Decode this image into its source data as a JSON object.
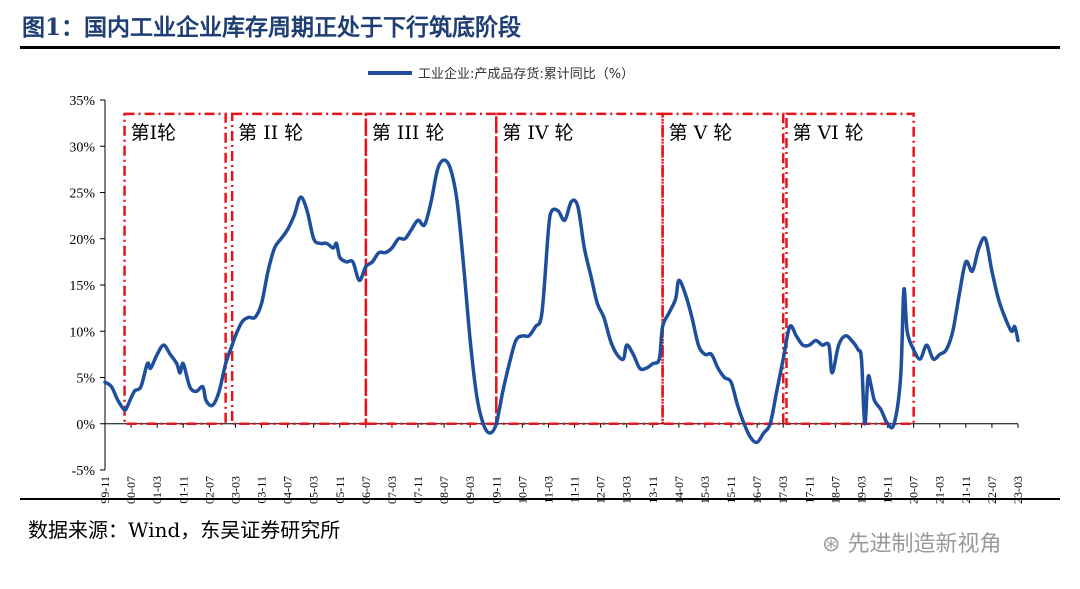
{
  "title": "图1：国内工业企业库存周期正处于下行筑底阶段",
  "source": "数据来源：Wind，东吴证券研究所",
  "watermark": "先进制造新视角",
  "colors": {
    "line": "#1f4e9c",
    "period": "#e8141b",
    "title": "#1f3f74"
  },
  "chart_data": {
    "type": "line",
    "title": "",
    "xlabel": "",
    "ylabel": "",
    "ylim": [
      -5,
      35
    ],
    "yticks": [
      -5,
      0,
      5,
      10,
      15,
      20,
      25,
      30,
      35
    ],
    "ytick_labels": [
      "-5%",
      "0%",
      "5%",
      "10%",
      "15%",
      "20%",
      "25%",
      "30%",
      "35%"
    ],
    "x_start": "1999-11",
    "x_end": "2023-03",
    "xtick_labels": [
      "99-11",
      "00-07",
      "01-03",
      "01-11",
      "02-07",
      "03-03",
      "03-11",
      "04-07",
      "05-03",
      "05-11",
      "06-07",
      "07-03",
      "07-11",
      "08-07",
      "09-03",
      "09-11",
      "10-07",
      "11-03",
      "11-11",
      "12-07",
      "13-03",
      "13-11",
      "14-07",
      "15-03",
      "15-11",
      "16-07",
      "17-03",
      "17-11",
      "18-07",
      "19-03",
      "19-11",
      "20-07",
      "21-03",
      "21-11",
      "22-07",
      "23-03"
    ],
    "legend": {
      "label": "工业企业:产成品存货:累计同比（%）",
      "position": "top-center"
    },
    "series": [
      {
        "name": "工业企业:产成品存货:累计同比（%）",
        "points": [
          [
            "1999-11",
            4.5
          ],
          [
            "2000-01",
            4.0
          ],
          [
            "2000-03",
            2.5
          ],
          [
            "2000-05",
            1.5
          ],
          [
            "2000-06",
            2.0
          ],
          [
            "2000-08",
            3.5
          ],
          [
            "2000-10",
            4.0
          ],
          [
            "2000-12",
            6.5
          ],
          [
            "2001-01",
            6.0
          ],
          [
            "2001-03",
            7.5
          ],
          [
            "2001-05",
            8.5
          ],
          [
            "2001-07",
            7.5
          ],
          [
            "2001-09",
            6.5
          ],
          [
            "2001-10",
            5.5
          ],
          [
            "2001-11",
            6.5
          ],
          [
            "2002-01",
            4.0
          ],
          [
            "2002-03",
            3.5
          ],
          [
            "2002-05",
            4.0
          ],
          [
            "2002-06",
            2.5
          ],
          [
            "2002-08",
            2.0
          ],
          [
            "2002-10",
            3.5
          ],
          [
            "2002-12",
            6.5
          ],
          [
            "2003-02",
            8.5
          ],
          [
            "2003-03",
            9.5
          ],
          [
            "2003-05",
            11.0
          ],
          [
            "2003-07",
            11.5
          ],
          [
            "2003-09",
            11.5
          ],
          [
            "2003-11",
            13.0
          ],
          [
            "2004-01",
            16.5
          ],
          [
            "2004-03",
            19.0
          ],
          [
            "2004-05",
            20.0
          ],
          [
            "2004-07",
            21.0
          ],
          [
            "2004-09",
            22.5
          ],
          [
            "2004-11",
            24.5
          ],
          [
            "2005-01",
            23.0
          ],
          [
            "2005-03",
            20.0
          ],
          [
            "2005-05",
            19.5
          ],
          [
            "2005-07",
            19.5
          ],
          [
            "2005-09",
            19.0
          ],
          [
            "2005-10",
            19.5
          ],
          [
            "2005-11",
            18.0
          ],
          [
            "2006-01",
            17.5
          ],
          [
            "2006-03",
            17.5
          ],
          [
            "2006-05",
            15.5
          ],
          [
            "2006-07",
            17.0
          ],
          [
            "2006-09",
            17.5
          ],
          [
            "2006-11",
            18.5
          ],
          [
            "2007-01",
            18.5
          ],
          [
            "2007-03",
            19.0
          ],
          [
            "2007-05",
            20.0
          ],
          [
            "2007-07",
            20.0
          ],
          [
            "2007-09",
            21.0
          ],
          [
            "2007-11",
            22.0
          ],
          [
            "2008-01",
            21.5
          ],
          [
            "2008-03",
            24.0
          ],
          [
            "2008-05",
            27.5
          ],
          [
            "2008-07",
            28.5
          ],
          [
            "2008-09",
            27.5
          ],
          [
            "2008-11",
            24.0
          ],
          [
            "2009-01",
            17.0
          ],
          [
            "2009-03",
            9.0
          ],
          [
            "2009-05",
            3.0
          ],
          [
            "2009-07",
            0.0
          ],
          [
            "2009-09",
            -1.0
          ],
          [
            "2009-11",
            0.0
          ],
          [
            "2010-01",
            3.5
          ],
          [
            "2010-03",
            6.5
          ],
          [
            "2010-05",
            9.0
          ],
          [
            "2010-07",
            9.5
          ],
          [
            "2010-09",
            9.5
          ],
          [
            "2010-11",
            10.5
          ],
          [
            "2011-01",
            12.0
          ],
          [
            "2011-03",
            21.0
          ],
          [
            "2011-04",
            23.0
          ],
          [
            "2011-06",
            23.0
          ],
          [
            "2011-08",
            22.0
          ],
          [
            "2011-10",
            24.0
          ],
          [
            "2011-12",
            23.5
          ],
          [
            "2012-02",
            19.0
          ],
          [
            "2012-04",
            16.0
          ],
          [
            "2012-06",
            13.0
          ],
          [
            "2012-08",
            11.5
          ],
          [
            "2012-10",
            9.0
          ],
          [
            "2012-12",
            7.5
          ],
          [
            "2013-02",
            7.0
          ],
          [
            "2013-03",
            8.5
          ],
          [
            "2013-05",
            7.5
          ],
          [
            "2013-07",
            6.0
          ],
          [
            "2013-09",
            6.0
          ],
          [
            "2013-11",
            6.5
          ],
          [
            "2014-01",
            7.0
          ],
          [
            "2014-02",
            10.5
          ],
          [
            "2014-04",
            12.0
          ],
          [
            "2014-06",
            13.5
          ],
          [
            "2014-07",
            15.5
          ],
          [
            "2014-09",
            14.0
          ],
          [
            "2014-11",
            11.5
          ],
          [
            "2015-01",
            8.5
          ],
          [
            "2015-03",
            7.5
          ],
          [
            "2015-05",
            7.5
          ],
          [
            "2015-07",
            6.0
          ],
          [
            "2015-09",
            5.0
          ],
          [
            "2015-11",
            4.5
          ],
          [
            "2016-01",
            2.0
          ],
          [
            "2016-03",
            0.0
          ],
          [
            "2016-05",
            -1.5
          ],
          [
            "2016-07",
            -2.0
          ],
          [
            "2016-09",
            -1.0
          ],
          [
            "2016-11",
            0.0
          ],
          [
            "2017-01",
            3.5
          ],
          [
            "2017-03",
            7.0
          ],
          [
            "2017-05",
            10.5
          ],
          [
            "2017-07",
            9.5
          ],
          [
            "2017-09",
            8.5
          ],
          [
            "2017-11",
            8.5
          ],
          [
            "2018-01",
            9.0
          ],
          [
            "2018-03",
            8.5
          ],
          [
            "2018-05",
            8.5
          ],
          [
            "2018-06",
            5.5
          ],
          [
            "2018-08",
            8.5
          ],
          [
            "2018-10",
            9.5
          ],
          [
            "2018-12",
            9.0
          ],
          [
            "2019-02",
            8.0
          ],
          [
            "2019-03",
            7.0
          ],
          [
            "2019-04",
            0.0
          ],
          [
            "2019-05",
            5.0
          ],
          [
            "2019-06",
            4.0
          ],
          [
            "2019-07",
            2.5
          ],
          [
            "2019-09",
            1.5
          ],
          [
            "2019-11",
            0.0
          ],
          [
            "2020-01",
            0.0
          ],
          [
            "2020-03",
            5.0
          ],
          [
            "2020-04",
            14.5
          ],
          [
            "2020-05",
            10.0
          ],
          [
            "2020-07",
            8.0
          ],
          [
            "2020-09",
            7.0
          ],
          [
            "2020-11",
            8.5
          ],
          [
            "2021-01",
            7.0
          ],
          [
            "2021-03",
            7.5
          ],
          [
            "2021-05",
            8.0
          ],
          [
            "2021-07",
            10.0
          ],
          [
            "2021-09",
            14.0
          ],
          [
            "2021-11",
            17.5
          ],
          [
            "2022-01",
            16.5
          ],
          [
            "2022-03",
            19.0
          ],
          [
            "2022-05",
            20.0
          ],
          [
            "2022-07",
            16.5
          ],
          [
            "2022-09",
            13.5
          ],
          [
            "2022-11",
            11.5
          ],
          [
            "2023-01",
            10.0
          ],
          [
            "2023-02",
            10.5
          ],
          [
            "2023-03",
            9.0
          ]
        ]
      }
    ],
    "periods": [
      {
        "label": "第Ⅰ轮",
        "start": "2000-05",
        "end": "2002-12"
      },
      {
        "label": "第 II 轮",
        "start": "2003-02",
        "end": "2006-07"
      },
      {
        "label": "第 III 轮",
        "start": "2006-07",
        "end": "2009-11"
      },
      {
        "label": "第 IV 轮",
        "start": "2009-11",
        "end": "2014-02"
      },
      {
        "label": "第 V 轮",
        "start": "2014-02",
        "end": "2017-03"
      },
      {
        "label": "第 VI 轮",
        "start": "2017-04",
        "end": "2020-07"
      }
    ]
  }
}
